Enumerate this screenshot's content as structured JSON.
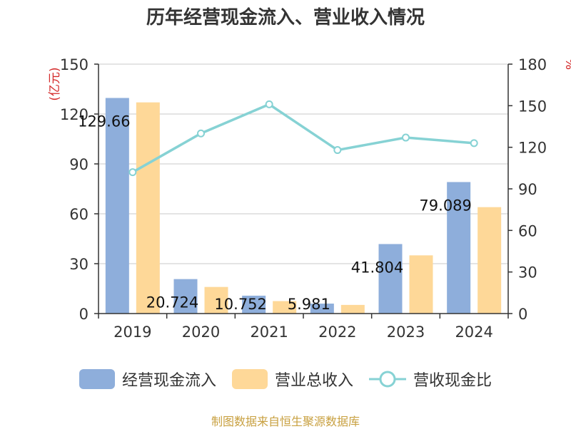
{
  "chart_data": {
    "type": "bar",
    "title": "历年经营现金流入、营业收入情况",
    "categories": [
      "2019",
      "2020",
      "2021",
      "2022",
      "2023",
      "2024"
    ],
    "series": [
      {
        "name": "经营现金流入",
        "kind": "bar",
        "axis": "left",
        "color": "#8eaedb",
        "values": [
          129.66,
          20.724,
          10.752,
          5.981,
          41.804,
          79.089
        ]
      },
      {
        "name": "营业总收入",
        "kind": "bar",
        "axis": "left",
        "color": "#fed898",
        "values": [
          127,
          16,
          7.5,
          5.2,
          35,
          64
        ]
      },
      {
        "name": "营收现金比",
        "kind": "line",
        "axis": "right",
        "color": "#86d2d4",
        "values": [
          102,
          130,
          151,
          118,
          127,
          123
        ]
      }
    ],
    "data_labels": [
      "129.66",
      "20.724",
      "10.752",
      "5.981",
      "41.804",
      "79.089"
    ],
    "left_axis": {
      "unit": "(亿元)",
      "ylim": [
        0,
        150
      ],
      "ticks": [
        "0",
        "30",
        "60",
        "90",
        "120",
        "150"
      ]
    },
    "right_axis": {
      "unit": "%",
      "ylim": [
        0,
        180
      ],
      "ticks": [
        "0",
        "30",
        "60",
        "90",
        "120",
        "150",
        "180"
      ]
    },
    "grid": true,
    "legend_position": "bottom"
  },
  "source": "制图数据来自恒生聚源数据库"
}
